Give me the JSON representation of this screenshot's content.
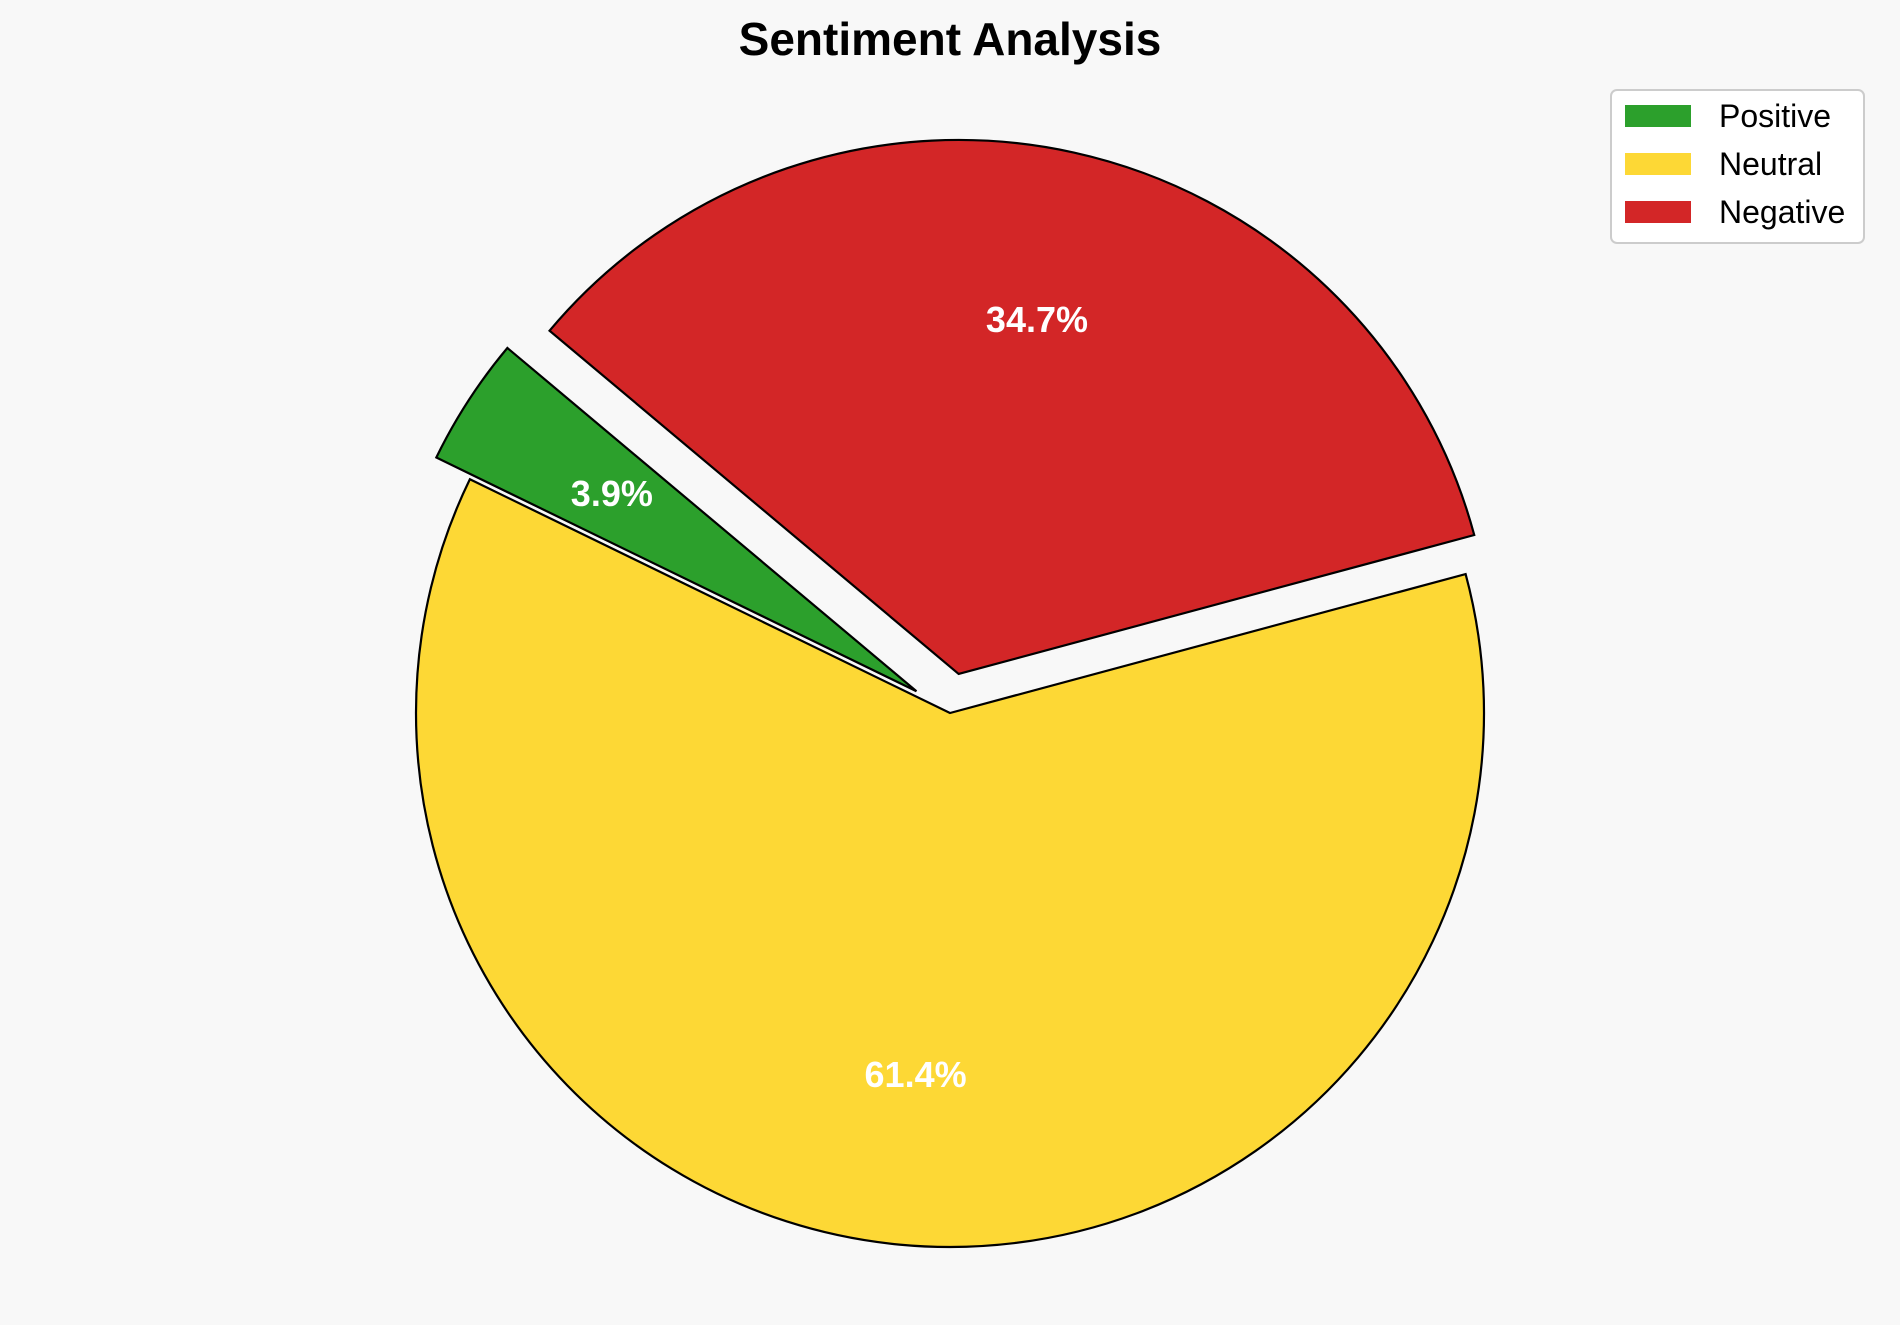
{
  "chart_data": {
    "type": "pie",
    "title": "Sentiment Analysis",
    "categories": [
      "Positive",
      "Neutral",
      "Negative"
    ],
    "values": [
      3.9,
      61.4,
      34.7
    ],
    "value_labels": [
      "3.9%",
      "61.4%",
      "34.7%"
    ],
    "colors": [
      "#2ca02c",
      "#fdd835",
      "#d32627"
    ],
    "exploded": [
      true,
      false,
      true
    ],
    "legend_placement": "top-right",
    "legend": [
      {
        "label": "Positive",
        "color": "#2ca02c"
      },
      {
        "label": "Neutral",
        "color": "#fdd835"
      },
      {
        "label": "Negative",
        "color": "#d32627"
      }
    ]
  }
}
